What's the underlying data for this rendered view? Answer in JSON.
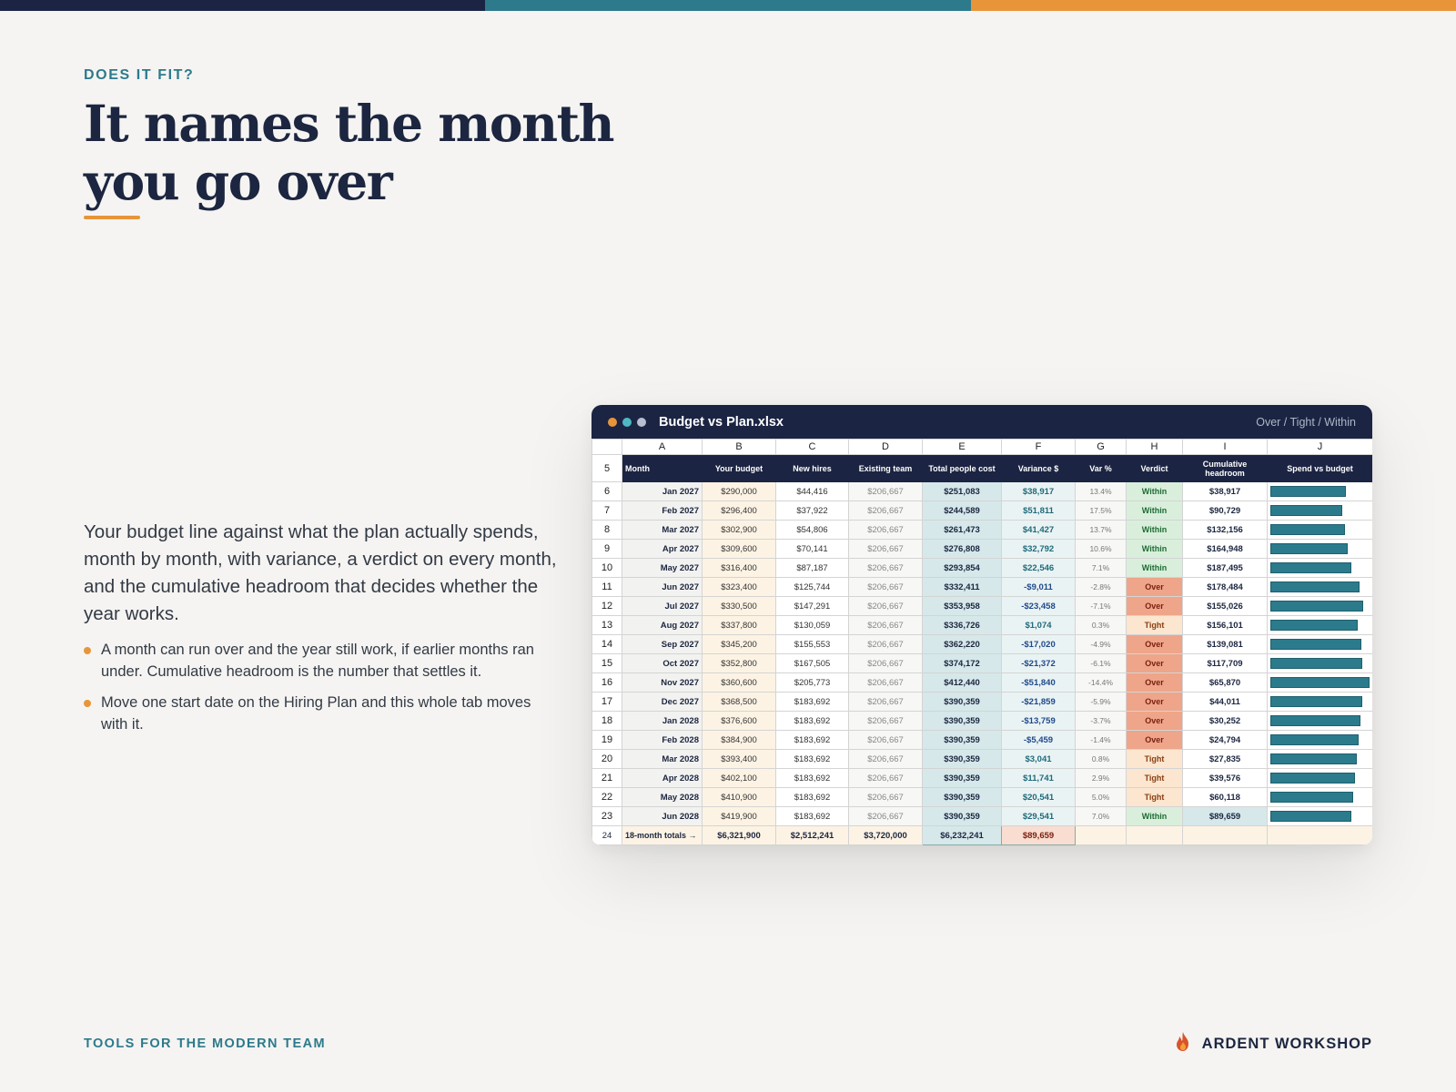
{
  "colors": {
    "navy": "#1b2442",
    "teal": "#2d7a8c",
    "orange": "#e8953a",
    "within_bg": "#d9efdc",
    "within_fg": "#1f6b34",
    "over_bg": "#eea58a",
    "over_fg": "#7a1f10",
    "tight_bg": "#fce6cf",
    "tight_fg": "#8a3e12",
    "positive": "#1f6b7a",
    "negative": "#1f4a8a"
  },
  "eyebrow": "DOES IT FIT?",
  "headline": "It names the month you go over",
  "body": "Your budget line against what the plan actually spends, month by month, with variance, a verdict on every month, and the cumulative headroom that decides whether the year works.",
  "bullets": [
    "A month can run over and the year still work, if earlier months ran under. Cumulative headroom is the number that settles it.",
    "Move one start date on the Hiring Plan and this whole tab moves with it."
  ],
  "window": {
    "title": "Budget vs Plan.xlsx",
    "legend": "Over / Tight / Within",
    "dots": [
      "#e8953a",
      "#4fb8c4",
      "#b8bdd0"
    ]
  },
  "sheet": {
    "col_letters": [
      "A",
      "B",
      "C",
      "D",
      "E",
      "F",
      "G",
      "H",
      "I",
      "J"
    ],
    "header_row_num": "5",
    "headers": [
      "Month",
      "Your budget",
      "New hires",
      "Existing team",
      "Total people cost",
      "Variance $",
      "Var %",
      "Verdict",
      "Cumulative headroom",
      "Spend vs budget"
    ],
    "rows": [
      {
        "n": "6",
        "month": "Jan 2027",
        "budget": "$290,000",
        "new_hires": "$44,416",
        "existing": "$206,667",
        "total": "$251,083",
        "variance": "$38,917",
        "pct": "13.4%",
        "verdict": "Within",
        "cumulative": "$38,917",
        "spend_ratio": 0.87
      },
      {
        "n": "7",
        "month": "Feb 2027",
        "budget": "$296,400",
        "new_hires": "$37,922",
        "existing": "$206,667",
        "total": "$244,589",
        "variance": "$51,811",
        "pct": "17.5%",
        "verdict": "Within",
        "cumulative": "$90,729",
        "spend_ratio": 0.83
      },
      {
        "n": "8",
        "month": "Mar 2027",
        "budget": "$302,900",
        "new_hires": "$54,806",
        "existing": "$206,667",
        "total": "$261,473",
        "variance": "$41,427",
        "pct": "13.7%",
        "verdict": "Within",
        "cumulative": "$132,156",
        "spend_ratio": 0.86
      },
      {
        "n": "9",
        "month": "Apr 2027",
        "budget": "$309,600",
        "new_hires": "$70,141",
        "existing": "$206,667",
        "total": "$276,808",
        "variance": "$32,792",
        "pct": "10.6%",
        "verdict": "Within",
        "cumulative": "$164,948",
        "spend_ratio": 0.89
      },
      {
        "n": "10",
        "month": "May 2027",
        "budget": "$316,400",
        "new_hires": "$87,187",
        "existing": "$206,667",
        "total": "$293,854",
        "variance": "$22,546",
        "pct": "7.1%",
        "verdict": "Within",
        "cumulative": "$187,495",
        "spend_ratio": 0.93
      },
      {
        "n": "11",
        "month": "Jun 2027",
        "budget": "$323,400",
        "new_hires": "$125,744",
        "existing": "$206,667",
        "total": "$332,411",
        "variance": "-$9,011",
        "pct": "-2.8%",
        "verdict": "Over",
        "cumulative": "$178,484",
        "spend_ratio": 1.03
      },
      {
        "n": "12",
        "month": "Jul 2027",
        "budget": "$330,500",
        "new_hires": "$147,291",
        "existing": "$206,667",
        "total": "$353,958",
        "variance": "-$23,458",
        "pct": "-7.1%",
        "verdict": "Over",
        "cumulative": "$155,026",
        "spend_ratio": 1.07
      },
      {
        "n": "13",
        "month": "Aug 2027",
        "budget": "$337,800",
        "new_hires": "$130,059",
        "existing": "$206,667",
        "total": "$336,726",
        "variance": "$1,074",
        "pct": "0.3%",
        "verdict": "Tight",
        "cumulative": "$156,101",
        "spend_ratio": 1.0
      },
      {
        "n": "14",
        "month": "Sep 2027",
        "budget": "$345,200",
        "new_hires": "$155,553",
        "existing": "$206,667",
        "total": "$362,220",
        "variance": "-$17,020",
        "pct": "-4.9%",
        "verdict": "Over",
        "cumulative": "$139,081",
        "spend_ratio": 1.05
      },
      {
        "n": "15",
        "month": "Oct 2027",
        "budget": "$352,800",
        "new_hires": "$167,505",
        "existing": "$206,667",
        "total": "$374,172",
        "variance": "-$21,372",
        "pct": "-6.1%",
        "verdict": "Over",
        "cumulative": "$117,709",
        "spend_ratio": 1.06
      },
      {
        "n": "16",
        "month": "Nov 2027",
        "budget": "$360,600",
        "new_hires": "$205,773",
        "existing": "$206,667",
        "total": "$412,440",
        "variance": "-$51,840",
        "pct": "-14.4%",
        "verdict": "Over",
        "cumulative": "$65,870",
        "spend_ratio": 1.14
      },
      {
        "n": "17",
        "month": "Dec 2027",
        "budget": "$368,500",
        "new_hires": "$183,692",
        "existing": "$206,667",
        "total": "$390,359",
        "variance": "-$21,859",
        "pct": "-5.9%",
        "verdict": "Over",
        "cumulative": "$44,011",
        "spend_ratio": 1.06
      },
      {
        "n": "18",
        "month": "Jan 2028",
        "budget": "$376,600",
        "new_hires": "$183,692",
        "existing": "$206,667",
        "total": "$390,359",
        "variance": "-$13,759",
        "pct": "-3.7%",
        "verdict": "Over",
        "cumulative": "$30,252",
        "spend_ratio": 1.04
      },
      {
        "n": "19",
        "month": "Feb 2028",
        "budget": "$384,900",
        "new_hires": "$183,692",
        "existing": "$206,667",
        "total": "$390,359",
        "variance": "-$5,459",
        "pct": "-1.4%",
        "verdict": "Over",
        "cumulative": "$24,794",
        "spend_ratio": 1.01
      },
      {
        "n": "20",
        "month": "Mar 2028",
        "budget": "$393,400",
        "new_hires": "$183,692",
        "existing": "$206,667",
        "total": "$390,359",
        "variance": "$3,041",
        "pct": "0.8%",
        "verdict": "Tight",
        "cumulative": "$27,835",
        "spend_ratio": 0.99
      },
      {
        "n": "21",
        "month": "Apr 2028",
        "budget": "$402,100",
        "new_hires": "$183,692",
        "existing": "$206,667",
        "total": "$390,359",
        "variance": "$11,741",
        "pct": "2.9%",
        "verdict": "Tight",
        "cumulative": "$39,576",
        "spend_ratio": 0.97
      },
      {
        "n": "22",
        "month": "May 2028",
        "budget": "$410,900",
        "new_hires": "$183,692",
        "existing": "$206,667",
        "total": "$390,359",
        "variance": "$20,541",
        "pct": "5.0%",
        "verdict": "Tight",
        "cumulative": "$60,118",
        "spend_ratio": 0.95
      },
      {
        "n": "23",
        "month": "Jun 2028",
        "budget": "$419,900",
        "new_hires": "$183,692",
        "existing": "$206,667",
        "total": "$390,359",
        "variance": "$29,541",
        "pct": "7.0%",
        "verdict": "Within",
        "cumulative": "$89,659",
        "spend_ratio": 0.93
      }
    ],
    "totals": {
      "n": "24",
      "label": "18-month totals →",
      "budget": "$6,321,900",
      "new_hires": "$2,512,241",
      "existing": "$3,720,000",
      "total": "$6,232,241",
      "variance": "$89,659"
    }
  },
  "footer_left": "TOOLS FOR THE MODERN TEAM",
  "footer_brand": "ARDENT WORKSHOP",
  "footer_icon": "flame-icon"
}
